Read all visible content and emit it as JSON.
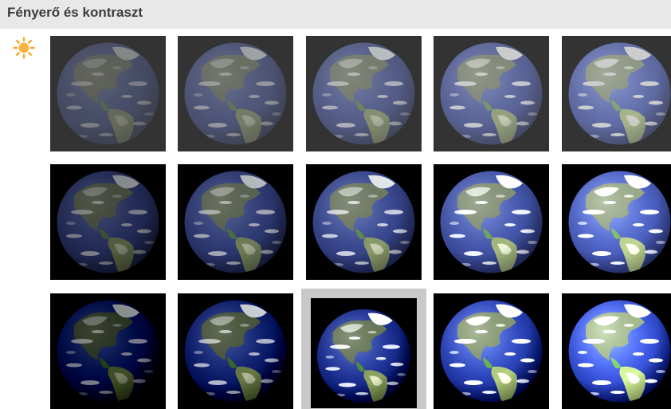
{
  "header": {
    "title": "Fényerő és kontraszt"
  },
  "icons": {
    "brightness": "sun-icon"
  },
  "colors": {
    "header_bg": "#e8e8e8",
    "selected_border": "#c8c8c8",
    "sun": "#f6a623"
  },
  "presets": {
    "brightness_levels": [
      -40,
      -20,
      0,
      20,
      40
    ],
    "contrast_levels": [
      -40,
      0,
      40
    ],
    "selected": {
      "row": 2,
      "col": 2
    }
  }
}
